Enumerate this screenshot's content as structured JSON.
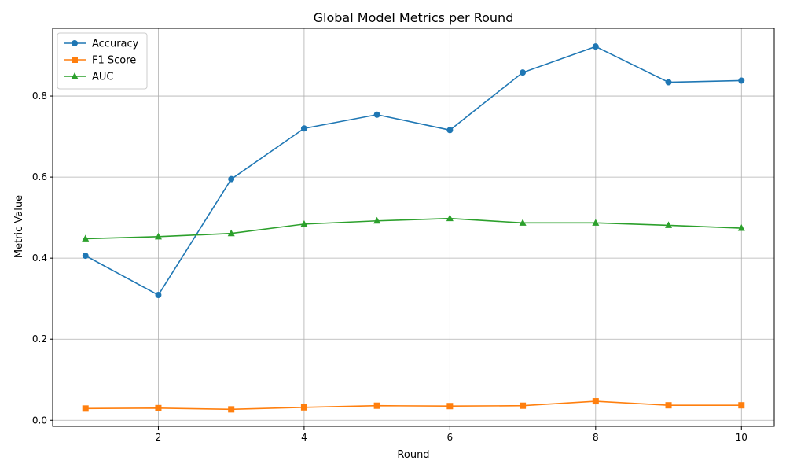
{
  "chart_data": {
    "type": "line",
    "title": "Global Model Metrics per Round",
    "xlabel": "Round",
    "ylabel": "Metric Value",
    "x": [
      1,
      2,
      3,
      4,
      5,
      6,
      7,
      8,
      9,
      10
    ],
    "xlim": [
      0.55,
      10.45
    ],
    "ylim": [
      -0.015,
      0.967
    ],
    "xticks": [
      2,
      4,
      6,
      8,
      10
    ],
    "yticks": [
      0.0,
      0.2,
      0.4,
      0.6,
      0.8
    ],
    "xtick_labels": [
      "2",
      "4",
      "6",
      "8",
      "10"
    ],
    "ytick_labels": [
      "0.0",
      "0.2",
      "0.4",
      "0.6",
      "0.8"
    ],
    "grid": true,
    "legend_position": "top-left",
    "series": [
      {
        "name": "Accuracy",
        "color": "#1f77b4",
        "marker": "circle",
        "values": [
          0.406,
          0.309,
          0.595,
          0.72,
          0.754,
          0.716,
          0.858,
          0.922,
          0.834,
          0.838
        ]
      },
      {
        "name": "F1 Score",
        "color": "#ff7f0e",
        "marker": "square",
        "values": [
          0.029,
          0.03,
          0.027,
          0.032,
          0.036,
          0.035,
          0.036,
          0.047,
          0.037,
          0.037
        ]
      },
      {
        "name": "AUC",
        "color": "#2ca02c",
        "marker": "triangle",
        "values": [
          0.448,
          0.453,
          0.461,
          0.484,
          0.492,
          0.498,
          0.487,
          0.487,
          0.481,
          0.474
        ]
      }
    ]
  }
}
